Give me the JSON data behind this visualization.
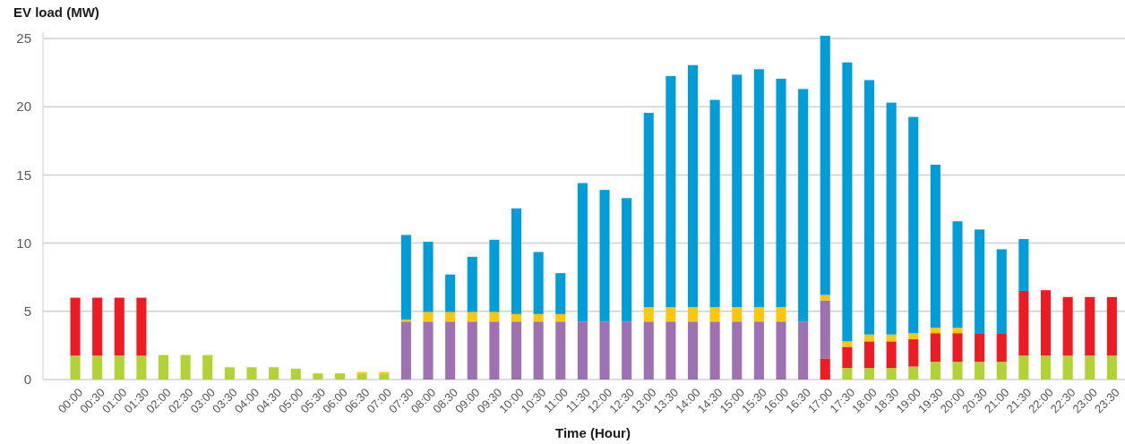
{
  "chart_data": {
    "type": "bar",
    "stacked": true,
    "ylabel": "EV load (MW)",
    "xlabel": "Time (Hour)",
    "grid": "y",
    "categories": [
      "00:00",
      "00:30",
      "01:00",
      "01:30",
      "02:00",
      "02:30",
      "03:00",
      "03:30",
      "04:00",
      "04:30",
      "05:00",
      "05:30",
      "06:00",
      "06:30",
      "07:00",
      "07:30",
      "08:00",
      "08:30",
      "09:00",
      "09:30",
      "10:00",
      "10:30",
      "11:00",
      "11:30",
      "12:00",
      "12:30",
      "13:00",
      "13:30",
      "14:00",
      "14:30",
      "15:00",
      "15:30",
      "16:00",
      "16:30",
      "17:00",
      "17:30",
      "18:00",
      "18:30",
      "19:00",
      "19:30",
      "20:00",
      "20:30",
      "21:00",
      "21:30",
      "22:00",
      "22:30",
      "23:00",
      "23:30"
    ],
    "ylim": [
      0,
      25.5
    ],
    "yticks": [
      0,
      5,
      10,
      15,
      20,
      25
    ],
    "series": [
      {
        "color": "#b2d235",
        "values": [
          1.75,
          1.75,
          1.75,
          1.75,
          1.8,
          1.8,
          1.8,
          0.9,
          0.9,
          0.9,
          0.8,
          0.45,
          0.45,
          0.4,
          0.4,
          0,
          0,
          0,
          0,
          0,
          0,
          0,
          0,
          0,
          0,
          0,
          0,
          0,
          0,
          0,
          0,
          0,
          0,
          0,
          0,
          0.85,
          0.85,
          0.85,
          0.95,
          1.3,
          1.3,
          1.3,
          1.3,
          1.75,
          1.75,
          1.75,
          1.75,
          1.75
        ]
      },
      {
        "color": "#ed1c24",
        "values": [
          4.25,
          4.25,
          4.25,
          4.25,
          0,
          0,
          0,
          0,
          0,
          0,
          0,
          0,
          0,
          0,
          0,
          0,
          0,
          0,
          0,
          0,
          0,
          0,
          0,
          0,
          0,
          0,
          0,
          0,
          0,
          0,
          0,
          0,
          0,
          0,
          1.55,
          1.55,
          1.95,
          1.95,
          2.0,
          2.1,
          2.1,
          2.1,
          2.1,
          4.75,
          4.8,
          4.3,
          4.3,
          4.3
        ]
      },
      {
        "color": "#9e72b2",
        "values": [
          0,
          0,
          0,
          0,
          0,
          0,
          0,
          0,
          0,
          0,
          0,
          0,
          0,
          0,
          0,
          4.25,
          4.25,
          4.25,
          4.25,
          4.25,
          4.25,
          4.25,
          4.25,
          4.25,
          4.25,
          4.25,
          4.25,
          4.25,
          4.25,
          4.25,
          4.25,
          4.25,
          4.25,
          4.25,
          4.25,
          0,
          0,
          0,
          0,
          0,
          0,
          0,
          0,
          0,
          0,
          0,
          0,
          0
        ]
      },
      {
        "color": "#ffc60b",
        "values": [
          0,
          0,
          0,
          0,
          0,
          0,
          0,
          0,
          0,
          0,
          0,
          0,
          0,
          0.15,
          0.15,
          0.15,
          0.7,
          0.7,
          0.7,
          0.7,
          0.55,
          0.55,
          0.55,
          0,
          0,
          0,
          1.05,
          1.05,
          1.05,
          1.05,
          1.05,
          1.05,
          1.05,
          0,
          0.4,
          0.4,
          0.5,
          0.5,
          0.45,
          0.4,
          0.4,
          0,
          0,
          0,
          0,
          0,
          0,
          0
        ]
      },
      {
        "color": "#009dd9",
        "values": [
          0,
          0,
          0,
          0,
          0,
          0,
          0,
          0,
          0,
          0,
          0,
          0,
          0,
          0,
          0,
          6.2,
          5.15,
          2.75,
          4.05,
          5.3,
          7.75,
          4.55,
          3.0,
          10.15,
          9.65,
          9.05,
          14.25,
          16.95,
          17.75,
          15.2,
          17.05,
          17.45,
          16.75,
          17.05,
          19.0,
          20.45,
          18.65,
          17.0,
          15.85,
          11.95,
          7.8,
          7.6,
          6.15,
          3.8,
          0,
          0,
          0,
          0
        ]
      }
    ]
  }
}
